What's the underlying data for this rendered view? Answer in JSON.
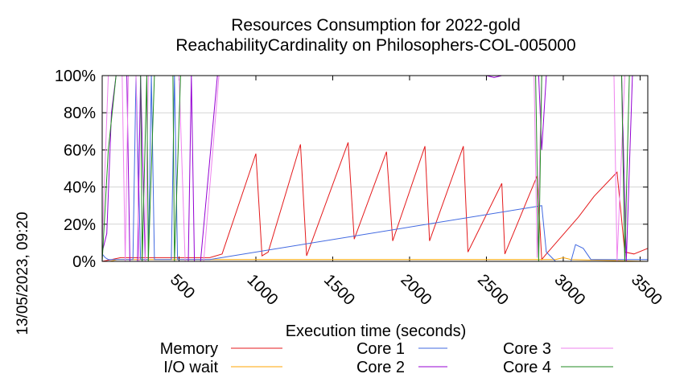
{
  "chart_data": {
    "type": "line",
    "title": "Resources Consumption for 2022-gold",
    "subtitle": "ReachabilityCardinality on Philosophers-COL-005000",
    "xlabel": "Execution time (seconds)",
    "ylabel": "",
    "side_label": "13/05/2023, 09:20",
    "xlim": [
      0,
      3550
    ],
    "ylim": [
      0,
      100
    ],
    "xticks": [
      500,
      1000,
      1500,
      2000,
      2500,
      3000,
      3500
    ],
    "yticks": [
      0,
      20,
      40,
      60,
      80,
      100
    ],
    "ytick_labels": [
      "0%",
      "20%",
      "40%",
      "60%",
      "80%",
      "100%"
    ],
    "legend_position": "bottom",
    "series": [
      {
        "name": "Memory",
        "color": "#e41a1c",
        "points": [
          [
            0,
            0
          ],
          [
            60,
            1
          ],
          [
            120,
            2
          ],
          [
            300,
            2
          ],
          [
            700,
            2
          ],
          [
            780,
            4
          ],
          [
            1000,
            58
          ],
          [
            1040,
            3
          ],
          [
            1080,
            5
          ],
          [
            1290,
            63
          ],
          [
            1330,
            3
          ],
          [
            1600,
            64
          ],
          [
            1640,
            12
          ],
          [
            1850,
            59
          ],
          [
            1890,
            11
          ],
          [
            2100,
            62
          ],
          [
            2130,
            11
          ],
          [
            2350,
            62
          ],
          [
            2380,
            5
          ],
          [
            2600,
            42
          ],
          [
            2620,
            4
          ],
          [
            2830,
            46
          ],
          [
            2860,
            1
          ],
          [
            2890,
            4
          ],
          [
            3100,
            24
          ],
          [
            3200,
            35
          ],
          [
            3350,
            48
          ],
          [
            3400,
            5
          ],
          [
            3460,
            4
          ],
          [
            3550,
            7
          ]
        ]
      },
      {
        "name": "I/O wait",
        "color": "#ffa500",
        "points": [
          [
            0,
            0
          ],
          [
            50,
            0
          ],
          [
            100,
            1
          ],
          [
            2950,
            1
          ],
          [
            3000,
            2
          ],
          [
            3050,
            1
          ],
          [
            3550,
            0
          ]
        ]
      },
      {
        "name": "Core 1",
        "color": "#4169e1",
        "points": [
          [
            0,
            4
          ],
          [
            20,
            2
          ],
          [
            40,
            1
          ],
          [
            200,
            1
          ],
          [
            220,
            100
          ],
          [
            250,
            1
          ],
          [
            300,
            1
          ],
          [
            320,
            100
          ],
          [
            340,
            1
          ],
          [
            450,
            1
          ],
          [
            470,
            100
          ],
          [
            490,
            1
          ],
          [
            600,
            1
          ],
          [
            700,
            1
          ],
          [
            2860,
            30
          ],
          [
            2890,
            5
          ],
          [
            2950,
            0
          ],
          [
            3050,
            0
          ],
          [
            3080,
            9
          ],
          [
            3130,
            7
          ],
          [
            3180,
            1
          ],
          [
            3250,
            1
          ],
          [
            3300,
            1
          ],
          [
            3550,
            1
          ]
        ]
      },
      {
        "name": "Core 2",
        "color": "#9400d3",
        "points": [
          [
            0,
            5
          ],
          [
            30,
            15
          ],
          [
            60,
            80
          ],
          [
            90,
            100
          ],
          [
            160,
            100
          ],
          [
            180,
            0
          ],
          [
            230,
            0
          ],
          [
            250,
            100
          ],
          [
            280,
            0
          ],
          [
            560,
            0
          ],
          [
            580,
            100
          ],
          [
            600,
            0
          ],
          [
            640,
            0
          ],
          [
            750,
            100
          ],
          [
            2500,
            100
          ],
          [
            2550,
            99
          ],
          [
            2600,
            100
          ],
          [
            2820,
            100
          ],
          [
            2840,
            100
          ],
          [
            2860,
            60
          ],
          [
            2890,
            100
          ],
          [
            2900,
            100
          ],
          [
            3380,
            100
          ],
          [
            3410,
            0
          ],
          [
            3450,
            100
          ],
          [
            3550,
            100
          ]
        ]
      },
      {
        "name": "Core 3",
        "color": "#ee82ee",
        "points": [
          [
            0,
            10
          ],
          [
            40,
            100
          ],
          [
            130,
            100
          ],
          [
            150,
            0
          ],
          [
            170,
            100
          ],
          [
            220,
            100
          ],
          [
            240,
            0
          ],
          [
            280,
            0
          ],
          [
            300,
            100
          ],
          [
            500,
            100
          ],
          [
            540,
            0
          ],
          [
            660,
            0
          ],
          [
            760,
            100
          ],
          [
            2810,
            100
          ],
          [
            2830,
            2
          ],
          [
            2860,
            100
          ],
          [
            2880,
            100
          ],
          [
            3330,
            100
          ],
          [
            3350,
            0
          ],
          [
            3400,
            100
          ],
          [
            3550,
            100
          ]
        ]
      },
      {
        "name": "Core 4",
        "color": "#228b22",
        "points": [
          [
            0,
            0
          ],
          [
            40,
            60
          ],
          [
            90,
            100
          ],
          [
            250,
            100
          ],
          [
            260,
            0
          ],
          [
            290,
            100
          ],
          [
            300,
            0
          ],
          [
            340,
            100
          ],
          [
            460,
            100
          ],
          [
            470,
            0
          ],
          [
            510,
            100
          ],
          [
            2820,
            100
          ],
          [
            2840,
            0
          ],
          [
            2860,
            100
          ],
          [
            3380,
            100
          ],
          [
            3400,
            0
          ],
          [
            3430,
            100
          ],
          [
            3550,
            100
          ]
        ]
      }
    ]
  }
}
